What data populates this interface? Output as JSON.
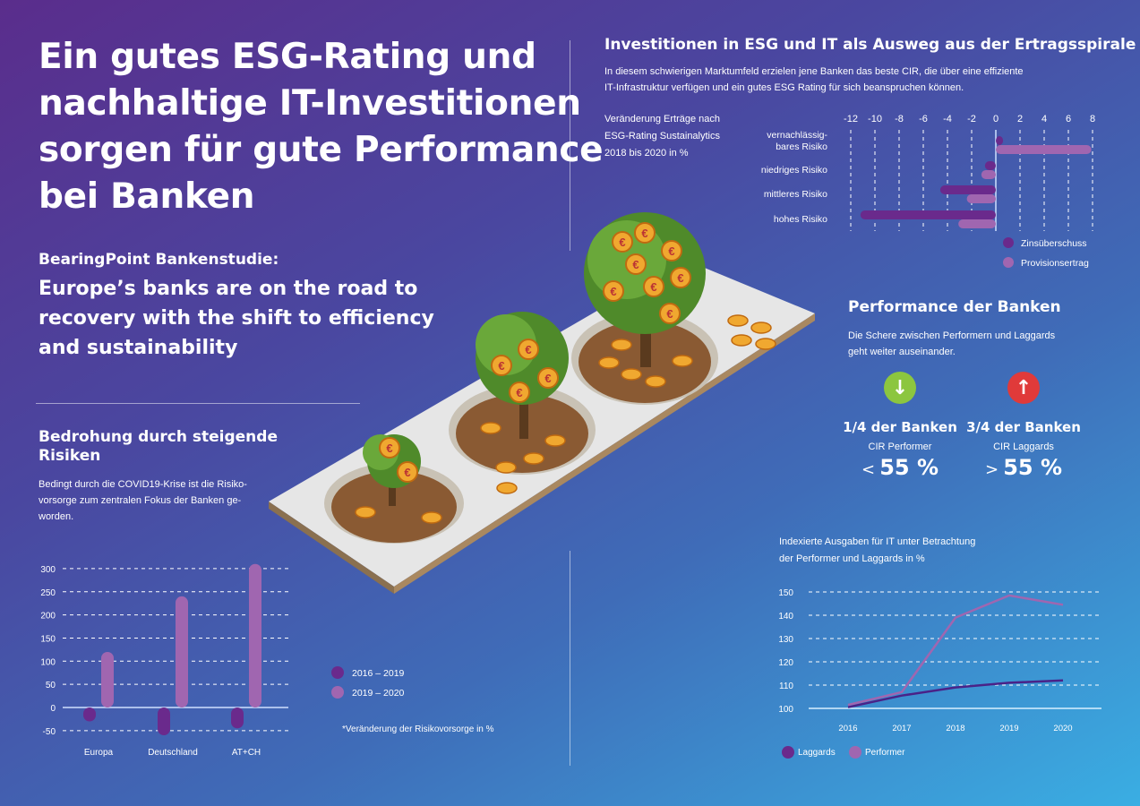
{
  "header": {
    "title_lines": [
      "Ein gutes ESG-Rating und",
      "nachhaltige IT-Investitionen",
      "sorgen für gute Performance",
      "bei Banken"
    ],
    "study_label": "BearingPoint Bankenstudie:",
    "subtitle_lines": [
      "Europe’s banks are on the road to",
      "recovery with the shift to efficiency",
      "and sustainability"
    ]
  },
  "risk_section": {
    "title_lines": [
      "Bedrohung durch steigende",
      "Risiken"
    ],
    "text_lines": [
      "Bedingt durch die COVID19-Krise ist die Risiko-",
      "vorsorge zum zentralen Fokus der Banken ge-",
      "worden."
    ],
    "footnote": "*Veränderung der Risikovorsorge in %"
  },
  "esg_section": {
    "title": "Investitionen in ESG und IT als Ausweg aus der Ertragsspirale",
    "text_lines": [
      "In diesem schwierigen Marktumfeld erzielen jene Banken das beste CIR, die über eine effiziente",
      "IT-Infrastruktur verfügen und ein gutes ESG Rating für sich beanspruchen können."
    ],
    "chart_caption_lines": [
      "Veränderung Erträge nach",
      "ESG-Rating Sustainalytics",
      "2018 bis 2020 in %"
    ]
  },
  "performance": {
    "title": "Performance der Banken",
    "text_lines": [
      "Die Schere zwischen Performern und Laggards",
      "geht weiter auseinander."
    ],
    "left": {
      "share": "1/4 der Banken",
      "label": "CIR Performer",
      "sign": "<",
      "value": "55 %",
      "icon": "arrow-down-icon",
      "color": "#8cc63f"
    },
    "right": {
      "share": "3/4 der Banken",
      "label": "CIR Laggards",
      "sign": ">",
      "value": "55 %",
      "icon": "arrow-up-icon",
      "color": "#e03a3a"
    }
  },
  "it_section": {
    "caption_lines": [
      "Indexierte Ausgaben für IT unter Betrachtung",
      "der Performer und Laggards in %"
    ]
  },
  "colors": {
    "dark": "#6a2a8c",
    "light": "#a066b0"
  },
  "chart_data": [
    {
      "type": "bar",
      "orientation": "horizontal",
      "categories": [
        "vernachlässig-\nbares Risiko",
        "niedriges Risiko",
        "mittleres Risiko",
        "hohes Risiko"
      ],
      "series": [
        {
          "name": "Zinsüberschuss",
          "values": [
            0.6,
            -0.9,
            -4.6,
            -11.2
          ]
        },
        {
          "name": "Provisionsertrag",
          "values": [
            7.9,
            -1.2,
            -2.4,
            -3.1
          ]
        }
      ],
      "xticks": [
        -12,
        -10,
        -8,
        -6,
        -4,
        -2,
        0,
        2,
        4,
        6,
        8
      ],
      "xlim": [
        -12,
        8
      ],
      "legend": "bottom-right"
    },
    {
      "type": "bar",
      "categories": [
        "Europa",
        "Deutschland",
        "AT+CH"
      ],
      "series": [
        {
          "name": "2016 – 2019",
          "values": [
            -30,
            -60,
            -45
          ]
        },
        {
          "name": "2019 – 2020",
          "values": [
            120,
            240,
            310
          ]
        }
      ],
      "yticks": [
        300,
        250,
        200,
        150,
        100,
        50,
        0,
        -50
      ],
      "ylim": [
        -50,
        300
      ],
      "legend": "right"
    },
    {
      "type": "line",
      "x": [
        2016,
        2017,
        2018,
        2019,
        2020
      ],
      "series": [
        {
          "name": "Laggards",
          "values": [
            100.5,
            105.5,
            109,
            111,
            112
          ]
        },
        {
          "name": "Performer",
          "values": [
            101.5,
            107,
            139,
            148.5,
            144.5
          ]
        }
      ],
      "yticks": [
        150,
        140,
        130,
        120,
        110,
        100
      ],
      "ylim": [
        100,
        150
      ],
      "legend": "bottom-left"
    }
  ]
}
